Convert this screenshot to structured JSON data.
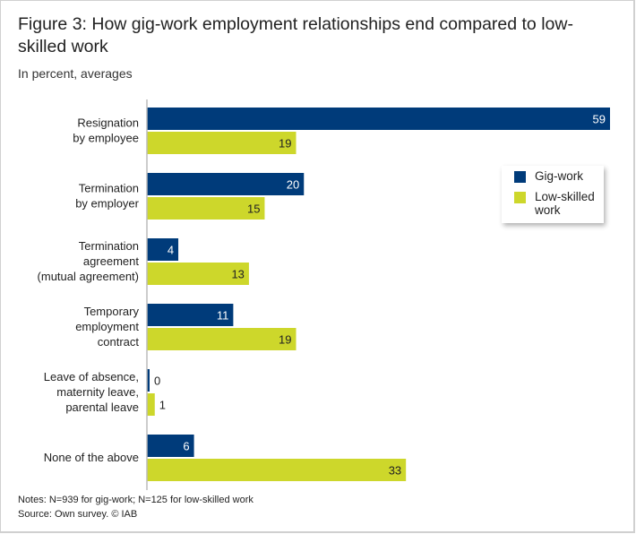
{
  "chart_data": {
    "type": "bar",
    "orientation": "horizontal",
    "title": "Figure 3: How gig-work employment relationships end compared to low-skilled work",
    "subtitle": "In percent, averages",
    "categories": [
      [
        "Resignation",
        "by employee"
      ],
      [
        "Termination",
        "by employer"
      ],
      [
        "Termination",
        "agreement",
        "(mutual agreement)"
      ],
      [
        "Temporary ",
        "employment",
        "contract"
      ],
      [
        "Leave of absence,",
        "maternity leave,",
        "parental leave"
      ],
      [
        "None of the above"
      ]
    ],
    "series": [
      {
        "name": "Gig-work",
        "color": "#003b7a",
        "values": [
          59,
          20,
          4,
          11,
          0,
          6
        ]
      },
      {
        "name": "Low-skilled work",
        "color": "#cdd72b",
        "values": [
          19,
          15,
          13,
          19,
          1,
          33
        ]
      }
    ],
    "xlim": [
      0,
      59
    ],
    "grid": false,
    "legend_placement": "right",
    "notes": [
      "Notes: N=939 for gig-work; N=125 for low-skilled work",
      "Source: Own survey. © IAB"
    ]
  }
}
